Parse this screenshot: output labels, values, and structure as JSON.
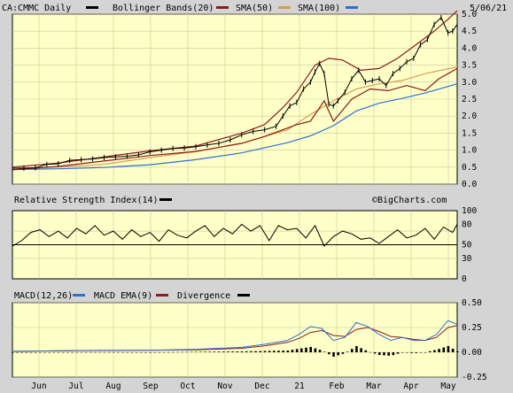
{
  "header": {
    "symbol_label": "CA:CMMC Daily",
    "bollinger_label": "Bollinger Bands(20)",
    "sma50_label": "SMA(50)",
    "sma100_label": "SMA(100)",
    "date": "5/06/21",
    "watermark": "©BigCharts.com"
  },
  "colors": {
    "plot_bg": "#ffffc8",
    "frame_bg": "#d4d4d4",
    "price": "#000000",
    "bollinger": "#8b1a1a",
    "sma50": "#d2a050",
    "sma100": "#2a6fd6",
    "macd": "#2a6fd6",
    "macd_ema": "#8b1a1a",
    "divergence": "#000000"
  },
  "chart_data": [
    {
      "type": "line",
      "panel": "price",
      "title": "CA:CMMC Daily",
      "x_labels": [
        "Jun",
        "Jul",
        "Aug",
        "Sep",
        "Oct",
        "Nov",
        "Dec",
        "21",
        "Feb",
        "Mar",
        "Apr",
        "May"
      ],
      "y_ticks": [
        "0.0",
        "0.5",
        "1.0",
        "1.5",
        "2.0",
        "2.5",
        "3.0",
        "3.5",
        "4.0",
        "4.5",
        "5.0"
      ],
      "ylim": [
        0,
        5.0
      ],
      "price_points": [
        [
          0,
          0.47
        ],
        [
          5,
          0.47
        ],
        [
          10,
          0.48
        ],
        [
          15,
          0.58
        ],
        [
          20,
          0.6
        ],
        [
          25,
          0.7
        ],
        [
          30,
          0.72
        ],
        [
          35,
          0.74
        ],
        [
          40,
          0.78
        ],
        [
          45,
          0.8
        ],
        [
          50,
          0.82
        ],
        [
          55,
          0.86
        ],
        [
          60,
          0.95
        ],
        [
          65,
          1.0
        ],
        [
          70,
          1.05
        ],
        [
          75,
          1.06
        ],
        [
          80,
          1.1
        ],
        [
          85,
          1.15
        ],
        [
          90,
          1.2
        ],
        [
          95,
          1.3
        ],
        [
          100,
          1.45
        ],
        [
          105,
          1.55
        ],
        [
          110,
          1.6
        ],
        [
          115,
          1.7
        ],
        [
          118,
          2.0
        ],
        [
          121,
          2.3
        ],
        [
          124,
          2.4
        ],
        [
          127,
          2.8
        ],
        [
          130,
          3.0
        ],
        [
          132,
          3.3
        ],
        [
          134,
          3.55
        ],
        [
          136,
          3.25
        ],
        [
          138,
          2.35
        ],
        [
          140,
          2.3
        ],
        [
          142,
          2.45
        ],
        [
          145,
          2.7
        ],
        [
          148,
          3.1
        ],
        [
          151,
          3.35
        ],
        [
          154,
          3.0
        ],
        [
          157,
          3.05
        ],
        [
          160,
          3.1
        ],
        [
          163,
          2.9
        ],
        [
          166,
          3.25
        ],
        [
          169,
          3.4
        ],
        [
          172,
          3.6
        ],
        [
          175,
          3.7
        ],
        [
          178,
          4.1
        ],
        [
          181,
          4.25
        ],
        [
          184,
          4.7
        ],
        [
          187,
          4.9
        ],
        [
          190,
          4.45
        ],
        [
          192,
          4.5
        ],
        [
          194,
          4.7
        ]
      ],
      "series": [
        {
          "name": "SMA(50)",
          "values": [
            [
              0,
              0.47
            ],
            [
              20,
              0.5
            ],
            [
              40,
              0.58
            ],
            [
              60,
              0.78
            ],
            [
              80,
              0.96
            ],
            [
              100,
              1.2
            ],
            [
              120,
              1.6
            ],
            [
              130,
              2.05
            ],
            [
              140,
              2.45
            ],
            [
              150,
              2.8
            ],
            [
              160,
              2.95
            ],
            [
              170,
              3.05
            ],
            [
              180,
              3.25
            ],
            [
              194,
              3.45
            ]
          ]
        },
        {
          "name": "SMA(100)",
          "values": [
            [
              0,
              0.43
            ],
            [
              20,
              0.45
            ],
            [
              40,
              0.49
            ],
            [
              60,
              0.57
            ],
            [
              80,
              0.72
            ],
            [
              100,
              0.92
            ],
            [
              120,
              1.22
            ],
            [
              130,
              1.42
            ],
            [
              140,
              1.72
            ],
            [
              150,
              2.15
            ],
            [
              160,
              2.38
            ],
            [
              170,
              2.52
            ],
            [
              180,
              2.68
            ],
            [
              194,
              2.95
            ]
          ]
        },
        {
          "name": "Bollinger Upper",
          "values": [
            [
              0,
              0.5
            ],
            [
              20,
              0.62
            ],
            [
              40,
              0.8
            ],
            [
              60,
              0.98
            ],
            [
              80,
              1.12
            ],
            [
              100,
              1.5
            ],
            [
              110,
              1.75
            ],
            [
              118,
              2.25
            ],
            [
              124,
              2.7
            ],
            [
              132,
              3.5
            ],
            [
              138,
              3.7
            ],
            [
              144,
              3.65
            ],
            [
              152,
              3.35
            ],
            [
              160,
              3.4
            ],
            [
              168,
              3.7
            ],
            [
              176,
              4.1
            ],
            [
              184,
              4.5
            ],
            [
              190,
              4.85
            ],
            [
              194,
              5.1
            ]
          ]
        },
        {
          "name": "Bollinger Lower",
          "values": [
            [
              0,
              0.42
            ],
            [
              20,
              0.52
            ],
            [
              40,
              0.68
            ],
            [
              60,
              0.84
            ],
            [
              80,
              0.96
            ],
            [
              100,
              1.2
            ],
            [
              110,
              1.4
            ],
            [
              118,
              1.6
            ],
            [
              124,
              1.75
            ],
            [
              130,
              1.85
            ],
            [
              136,
              2.45
            ],
            [
              140,
              1.85
            ],
            [
              148,
              2.5
            ],
            [
              156,
              2.8
            ],
            [
              164,
              2.75
            ],
            [
              172,
              2.9
            ],
            [
              180,
              2.75
            ],
            [
              186,
              3.1
            ],
            [
              194,
              3.4
            ]
          ]
        }
      ]
    },
    {
      "type": "line",
      "panel": "rsi",
      "title": "Relative Strength Index(14)",
      "y_ticks": [
        "0",
        "30",
        "50",
        "80",
        "100"
      ],
      "ylim": [
        0,
        100
      ],
      "values": [
        [
          0,
          48
        ],
        [
          4,
          56
        ],
        [
          8,
          68
        ],
        [
          12,
          72
        ],
        [
          16,
          62
        ],
        [
          20,
          70
        ],
        [
          24,
          60
        ],
        [
          28,
          74
        ],
        [
          32,
          66
        ],
        [
          36,
          78
        ],
        [
          40,
          64
        ],
        [
          44,
          70
        ],
        [
          48,
          58
        ],
        [
          52,
          72
        ],
        [
          56,
          62
        ],
        [
          60,
          68
        ],
        [
          64,
          55
        ],
        [
          68,
          72
        ],
        [
          72,
          64
        ],
        [
          76,
          60
        ],
        [
          80,
          70
        ],
        [
          84,
          78
        ],
        [
          88,
          62
        ],
        [
          92,
          74
        ],
        [
          96,
          66
        ],
        [
          100,
          80
        ],
        [
          104,
          70
        ],
        [
          108,
          78
        ],
        [
          112,
          56
        ],
        [
          116,
          78
        ],
        [
          120,
          72
        ],
        [
          124,
          74
        ],
        [
          128,
          60
        ],
        [
          132,
          78
        ],
        [
          136,
          48
        ],
        [
          140,
          62
        ],
        [
          144,
          70
        ],
        [
          148,
          66
        ],
        [
          152,
          58
        ],
        [
          156,
          60
        ],
        [
          160,
          52
        ],
        [
          164,
          62
        ],
        [
          168,
          72
        ],
        [
          172,
          60
        ],
        [
          176,
          64
        ],
        [
          180,
          74
        ],
        [
          184,
          58
        ],
        [
          188,
          76
        ],
        [
          192,
          68
        ],
        [
          194,
          80
        ]
      ]
    },
    {
      "type": "line",
      "panel": "macd",
      "title": "MACD(12,26)",
      "series": [
        {
          "name": "MACD(12,26)",
          "values": [
            [
              0,
              0.01
            ],
            [
              20,
              0.015
            ],
            [
              40,
              0.02
            ],
            [
              60,
              0.02
            ],
            [
              80,
              0.03
            ],
            [
              100,
              0.05
            ],
            [
              110,
              0.08
            ],
            [
              120,
              0.12
            ],
            [
              125,
              0.18
            ],
            [
              130,
              0.26
            ],
            [
              135,
              0.24
            ],
            [
              140,
              0.12
            ],
            [
              145,
              0.15
            ],
            [
              150,
              0.3
            ],
            [
              155,
              0.26
            ],
            [
              160,
              0.18
            ],
            [
              165,
              0.12
            ],
            [
              170,
              0.15
            ],
            [
              175,
              0.12
            ],
            [
              180,
              0.12
            ],
            [
              185,
              0.18
            ],
            [
              190,
              0.32
            ],
            [
              194,
              0.28
            ]
          ]
        },
        {
          "name": "MACD EMA(9)",
          "values": [
            [
              0,
              0.01
            ],
            [
              20,
              0.014
            ],
            [
              40,
              0.018
            ],
            [
              60,
              0.02
            ],
            [
              80,
              0.025
            ],
            [
              100,
              0.04
            ],
            [
              110,
              0.065
            ],
            [
              120,
              0.1
            ],
            [
              125,
              0.14
            ],
            [
              130,
              0.2
            ],
            [
              135,
              0.22
            ],
            [
              140,
              0.17
            ],
            [
              145,
              0.16
            ],
            [
              150,
              0.23
            ],
            [
              155,
              0.25
            ],
            [
              160,
              0.21
            ],
            [
              165,
              0.16
            ],
            [
              170,
              0.15
            ],
            [
              175,
              0.13
            ],
            [
              180,
              0.12
            ],
            [
              185,
              0.15
            ],
            [
              190,
              0.25
            ],
            [
              194,
              0.27
            ]
          ]
        }
      ],
      "y_ticks": [
        "-0.25",
        "0.00",
        "0.25",
        "0.50"
      ],
      "ylim": [
        -0.25,
        0.5
      ],
      "divergence_label": "Divergence"
    }
  ]
}
